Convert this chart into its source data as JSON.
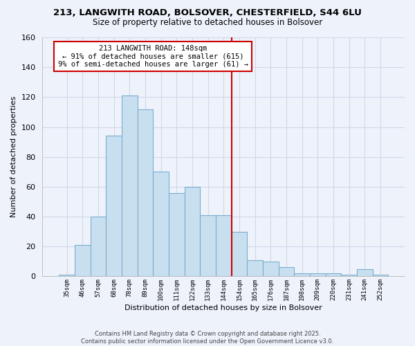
{
  "title1": "213, LANGWITH ROAD, BOLSOVER, CHESTERFIELD, S44 6LU",
  "title2": "Size of property relative to detached houses in Bolsover",
  "xlabel": "Distribution of detached houses by size in Bolsover",
  "ylabel": "Number of detached properties",
  "bin_labels": [
    "35sqm",
    "46sqm",
    "57sqm",
    "68sqm",
    "78sqm",
    "89sqm",
    "100sqm",
    "111sqm",
    "122sqm",
    "133sqm",
    "144sqm",
    "154sqm",
    "165sqm",
    "176sqm",
    "187sqm",
    "198sqm",
    "209sqm",
    "220sqm",
    "231sqm",
    "241sqm",
    "252sqm"
  ],
  "bar_values": [
    1,
    21,
    40,
    94,
    121,
    112,
    70,
    56,
    60,
    41,
    41,
    30,
    11,
    10,
    6,
    2,
    2,
    2,
    1,
    5,
    1
  ],
  "bar_color": "#c8dff0",
  "bar_edge_color": "#7aadce",
  "vline_color": "#cc0000",
  "annotation_title": "213 LANGWITH ROAD: 148sqm",
  "annotation_line1": "← 91% of detached houses are smaller (615)",
  "annotation_line2": "9% of semi-detached houses are larger (61) →",
  "annotation_box_color": "#ffffff",
  "annotation_box_edge": "#cc0000",
  "footer1": "Contains HM Land Registry data © Crown copyright and database right 2025.",
  "footer2": "Contains public sector information licensed under the Open Government Licence v3.0.",
  "ylim": [
    0,
    160
  ],
  "yticks": [
    0,
    20,
    40,
    60,
    80,
    100,
    120,
    140,
    160
  ],
  "bg_color": "#eef2fb",
  "grid_color": "#d0d8e8"
}
